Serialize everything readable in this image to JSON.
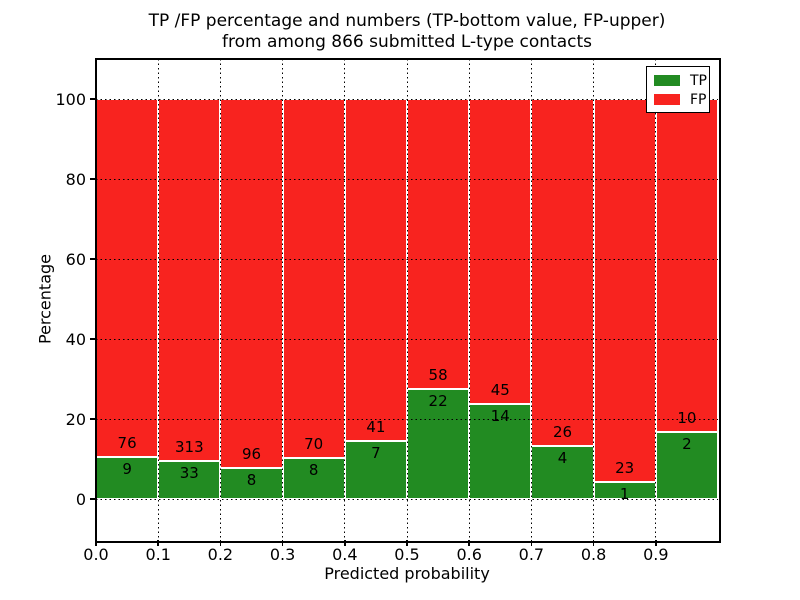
{
  "chart_data": {
    "type": "bar",
    "variant": "stacked-percentage-histogram",
    "title": "TP /FP percentage and numbers (TP-bottom value, FP-upper)\nfrom among 866 submitted L-type contacts",
    "title_line1": "TP /FP percentage and numbers (TP-bottom value, FP-upper)",
    "title_line2": "from among 866 submitted L-type contacts",
    "xlabel": "Predicted probability",
    "ylabel": "Percentage",
    "xlim": [
      0.0,
      1.0
    ],
    "ylim": [
      -10,
      110
    ],
    "xtick_labels": [
      "0.0",
      "0.1",
      "0.2",
      "0.3",
      "0.4",
      "0.5",
      "0.6",
      "0.7",
      "0.8",
      "0.9"
    ],
    "ytick_labels": [
      "0",
      "20",
      "40",
      "60",
      "80",
      "100"
    ],
    "ytick_values": [
      0,
      20,
      40,
      60,
      80,
      100
    ],
    "grid": "dotted-black",
    "total_contacts": 866,
    "colors": {
      "tp": "#228b22",
      "fp": "#f8231f",
      "bar_edge": "#ffffff",
      "text": "#000000",
      "background": "#ffffff"
    },
    "legend": {
      "position": "upper-right",
      "entries": [
        {
          "label": "TP",
          "color": "#228b22"
        },
        {
          "label": "FP",
          "color": "#f8231f"
        }
      ]
    },
    "bins": [
      {
        "range": [
          0.0,
          0.1
        ],
        "tp": 9,
        "fp": 76,
        "tp_percent": 10.59
      },
      {
        "range": [
          0.1,
          0.2
        ],
        "tp": 33,
        "fp": 313,
        "tp_percent": 9.54
      },
      {
        "range": [
          0.2,
          0.3
        ],
        "tp": 8,
        "fp": 96,
        "tp_percent": 7.69
      },
      {
        "range": [
          0.3,
          0.4
        ],
        "tp": 8,
        "fp": 70,
        "tp_percent": 10.26
      },
      {
        "range": [
          0.4,
          0.5
        ],
        "tp": 7,
        "fp": 41,
        "tp_percent": 14.58
      },
      {
        "range": [
          0.5,
          0.6
        ],
        "tp": 22,
        "fp": 58,
        "tp_percent": 27.5
      },
      {
        "range": [
          0.6,
          0.7
        ],
        "tp": 14,
        "fp": 45,
        "tp_percent": 23.73
      },
      {
        "range": [
          0.7,
          0.8
        ],
        "tp": 4,
        "fp": 26,
        "tp_percent": 13.33
      },
      {
        "range": [
          0.8,
          0.9
        ],
        "tp": 1,
        "fp": 23,
        "tp_percent": 4.17
      },
      {
        "range": [
          0.9,
          1.0
        ],
        "tp": 2,
        "fp": 10,
        "tp_percent": 16.67
      }
    ]
  }
}
